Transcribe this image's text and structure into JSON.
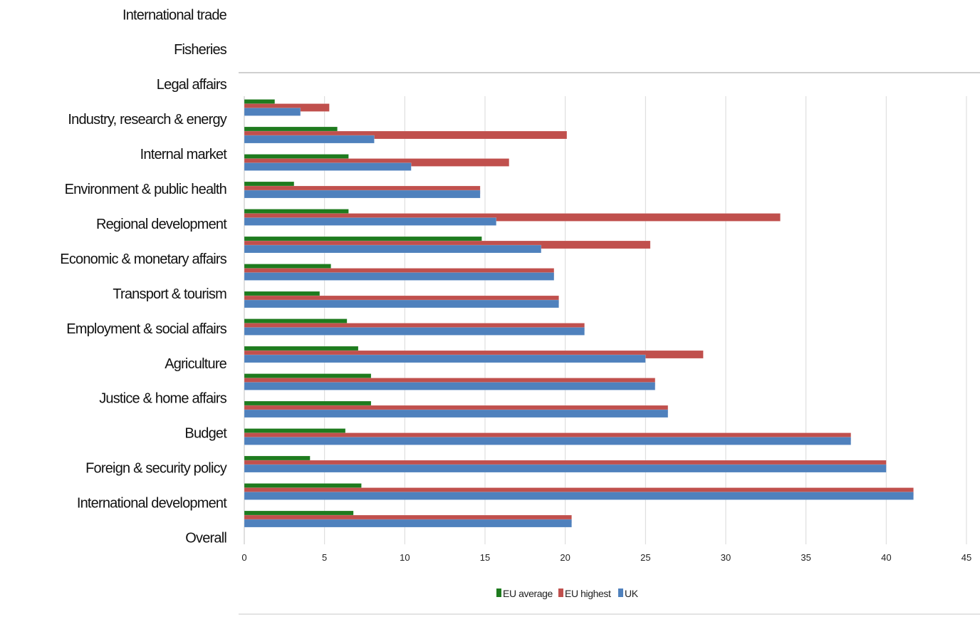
{
  "chart_data": {
    "type": "bar",
    "orientation": "horizontal",
    "categories": [
      "International trade",
      "Fisheries",
      "Legal affairs",
      "Industry, research & energy",
      "Internal market",
      "Environment & public health",
      "Regional development",
      "Economic & monetary affairs",
      "Transport & tourism",
      "Employment & social affairs",
      "Agriculture",
      "Justice & home affairs",
      "Budget",
      "Foreign & security policy",
      "International development",
      "Overall"
    ],
    "series": [
      {
        "name": "EU average",
        "color": "#1e7b1e",
        "values": [
          6.8,
          7.3,
          4.1,
          6.3,
          7.9,
          7.9,
          7.1,
          6.4,
          4.7,
          5.4,
          14.8,
          6.5,
          3.1,
          6.5,
          5.8,
          1.9
        ]
      },
      {
        "name": "EU highest",
        "color": "#c0504d",
        "values": [
          20.4,
          41.7,
          40.0,
          37.8,
          26.4,
          25.6,
          28.6,
          21.2,
          19.6,
          19.3,
          25.3,
          33.4,
          14.7,
          16.5,
          20.1,
          5.3
        ]
      },
      {
        "name": "UK",
        "color": "#4f81bd",
        "values": [
          20.4,
          41.7,
          40.0,
          37.8,
          26.4,
          25.6,
          25.0,
          21.2,
          19.6,
          19.3,
          18.5,
          15.7,
          14.7,
          10.4,
          8.1,
          3.5
        ]
      }
    ],
    "xlim": [
      0,
      45
    ],
    "xticks": [
      "0",
      "5",
      "10",
      "15",
      "20",
      "25",
      "30",
      "35",
      "40",
      "45"
    ],
    "grid": true,
    "legend_position": "bottom-center",
    "title": "",
    "xlabel": "",
    "ylabel": ""
  }
}
